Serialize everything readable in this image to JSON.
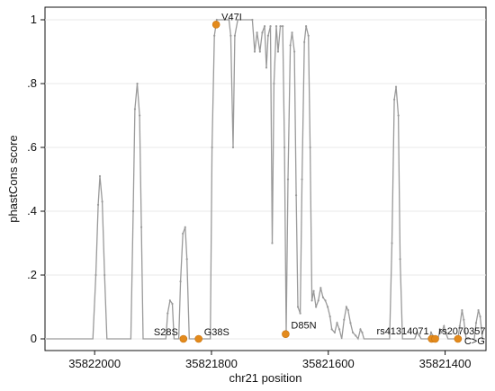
{
  "chart_data": {
    "type": "line",
    "xlabel": "chr21 position",
    "ylabel": "phastCons score",
    "xlim": [
      35822085,
      35821330
    ],
    "ylim": [
      0,
      1.04
    ],
    "x_reversed": true,
    "x_ticks": [
      35822000,
      35821800,
      35821600,
      35821400
    ],
    "x_tick_labels": [
      "35822000",
      "35821800",
      "35821600",
      "35821400"
    ],
    "y_ticks": [
      0,
      0.2,
      0.4,
      0.6,
      0.8,
      1
    ],
    "y_tick_labels": [
      "0",
      ".2",
      ".4",
      ".6",
      ".8",
      "1"
    ],
    "grid": true,
    "series": [
      {
        "color": "#9a9a9a",
        "points": [
          [
            35822083,
            0
          ],
          [
            35822003,
            0
          ],
          [
            35821998,
            0.2
          ],
          [
            35821994,
            0.42
          ],
          [
            35821991,
            0.51
          ],
          [
            35821987,
            0.43
          ],
          [
            35821983,
            0.2
          ],
          [
            35821979,
            0
          ],
          [
            35821938,
            0
          ],
          [
            35821934,
            0.4
          ],
          [
            35821931,
            0.72
          ],
          [
            35821927,
            0.8
          ],
          [
            35821923,
            0.7
          ],
          [
            35821920,
            0.35
          ],
          [
            35821917,
            0
          ],
          [
            35821878,
            0
          ],
          [
            35821875,
            0.08
          ],
          [
            35821871,
            0.12
          ],
          [
            35821867,
            0.11
          ],
          [
            35821864,
            0
          ],
          [
            35821856,
            0
          ],
          [
            35821853,
            0.18
          ],
          [
            35821849,
            0.33
          ],
          [
            35821845,
            0.35
          ],
          [
            35821842,
            0.25
          ],
          [
            35821838,
            0
          ],
          [
            35821802,
            0
          ],
          [
            35821799,
            0.6
          ],
          [
            35821795,
            0.95
          ],
          [
            35821791,
            1
          ],
          [
            35821770,
            1
          ],
          [
            35821767,
            0.95
          ],
          [
            35821763,
            0.6
          ],
          [
            35821760,
            0.95
          ],
          [
            35821755,
            1
          ],
          [
            35821730,
            1
          ],
          [
            35821726,
            0.9
          ],
          [
            35821722,
            0.96
          ],
          [
            35821717,
            0.9
          ],
          [
            35821713,
            0.96
          ],
          [
            35821709,
            0.98
          ],
          [
            35821706,
            0.85
          ],
          [
            35821703,
            0.95
          ],
          [
            35821699,
            0.98
          ],
          [
            35821696,
            0.3
          ],
          [
            35821693,
            0.8
          ],
          [
            35821689,
            0.98
          ],
          [
            35821686,
            0.9
          ],
          [
            35821682,
            0.98
          ],
          [
            35821678,
            0.98
          ],
          [
            35821675,
            0.6
          ],
          [
            35821672,
            0.02
          ],
          [
            35821669,
            0.5
          ],
          [
            35821665,
            0.92
          ],
          [
            35821662,
            0.96
          ],
          [
            35821658,
            0.9
          ],
          [
            35821655,
            0.45
          ],
          [
            35821652,
            0.1
          ],
          [
            35821648,
            0.08
          ],
          [
            35821645,
            0.5
          ],
          [
            35821641,
            0.93
          ],
          [
            35821638,
            0.98
          ],
          [
            35821634,
            0.95
          ],
          [
            35821631,
            0.6
          ],
          [
            35821628,
            0.12
          ],
          [
            35821625,
            0.15
          ],
          [
            35821621,
            0.1
          ],
          [
            35821617,
            0.12
          ],
          [
            35821613,
            0.16
          ],
          [
            35821609,
            0.13
          ],
          [
            35821605,
            0.12
          ],
          [
            35821601,
            0.1
          ],
          [
            35821597,
            0.07
          ],
          [
            35821594,
            0.03
          ],
          [
            35821589,
            0.02
          ],
          [
            35821585,
            0.05
          ],
          [
            35821581,
            0.03
          ],
          [
            35821577,
            0
          ],
          [
            35821573,
            0.06
          ],
          [
            35821569,
            0.1
          ],
          [
            35821566,
            0.09
          ],
          [
            35821562,
            0.05
          ],
          [
            35821558,
            0.02
          ],
          [
            35821553,
            0.01
          ],
          [
            35821549,
            0
          ],
          [
            35821545,
            0.03
          ],
          [
            35821542,
            0.02
          ],
          [
            35821539,
            0
          ],
          [
            35821495,
            0
          ],
          [
            35821491,
            0.3
          ],
          [
            35821487,
            0.75
          ],
          [
            35821484,
            0.79
          ],
          [
            35821480,
            0.7
          ],
          [
            35821477,
            0.25
          ],
          [
            35821473,
            0
          ],
          [
            35821452,
            0
          ],
          [
            35821448,
            0.02
          ],
          [
            35821444,
            0.01
          ],
          [
            35821441,
            0
          ],
          [
            35821427,
            0
          ],
          [
            35821424,
            0.02
          ],
          [
            35821421,
            0.01
          ],
          [
            35821418,
            0
          ],
          [
            35821412,
            0
          ],
          [
            35821409,
            0.03
          ],
          [
            35821406,
            0.02
          ],
          [
            35821402,
            0.04
          ],
          [
            35821399,
            0.02
          ],
          [
            35821395,
            0
          ],
          [
            35821378,
            0
          ],
          [
            35821375,
            0.04
          ],
          [
            35821371,
            0.09
          ],
          [
            35821368,
            0.06
          ],
          [
            35821364,
            0
          ],
          [
            35821350,
            0
          ],
          [
            35821347,
            0.05
          ],
          [
            35821343,
            0.09
          ],
          [
            35821340,
            0.07
          ],
          [
            35821336,
            0
          ],
          [
            35821330,
            0
          ]
        ]
      }
    ],
    "annotations": [
      {
        "label": "V47I",
        "x": 35821792,
        "y": 0.985
      },
      {
        "label": "S28S",
        "x": 35821848,
        "y": 0
      },
      {
        "label": "G38S",
        "x": 35821822,
        "y": 0
      },
      {
        "label": "D85N",
        "x": 35821673,
        "y": 0.015
      },
      {
        "label": "rs41314071",
        "x": 35821423,
        "y": 0
      },
      {
        "label": "rs2070357",
        "x": 35821417,
        "y": 0
      },
      {
        "label": "C>G",
        "x": 35821378,
        "y": 0
      }
    ]
  }
}
